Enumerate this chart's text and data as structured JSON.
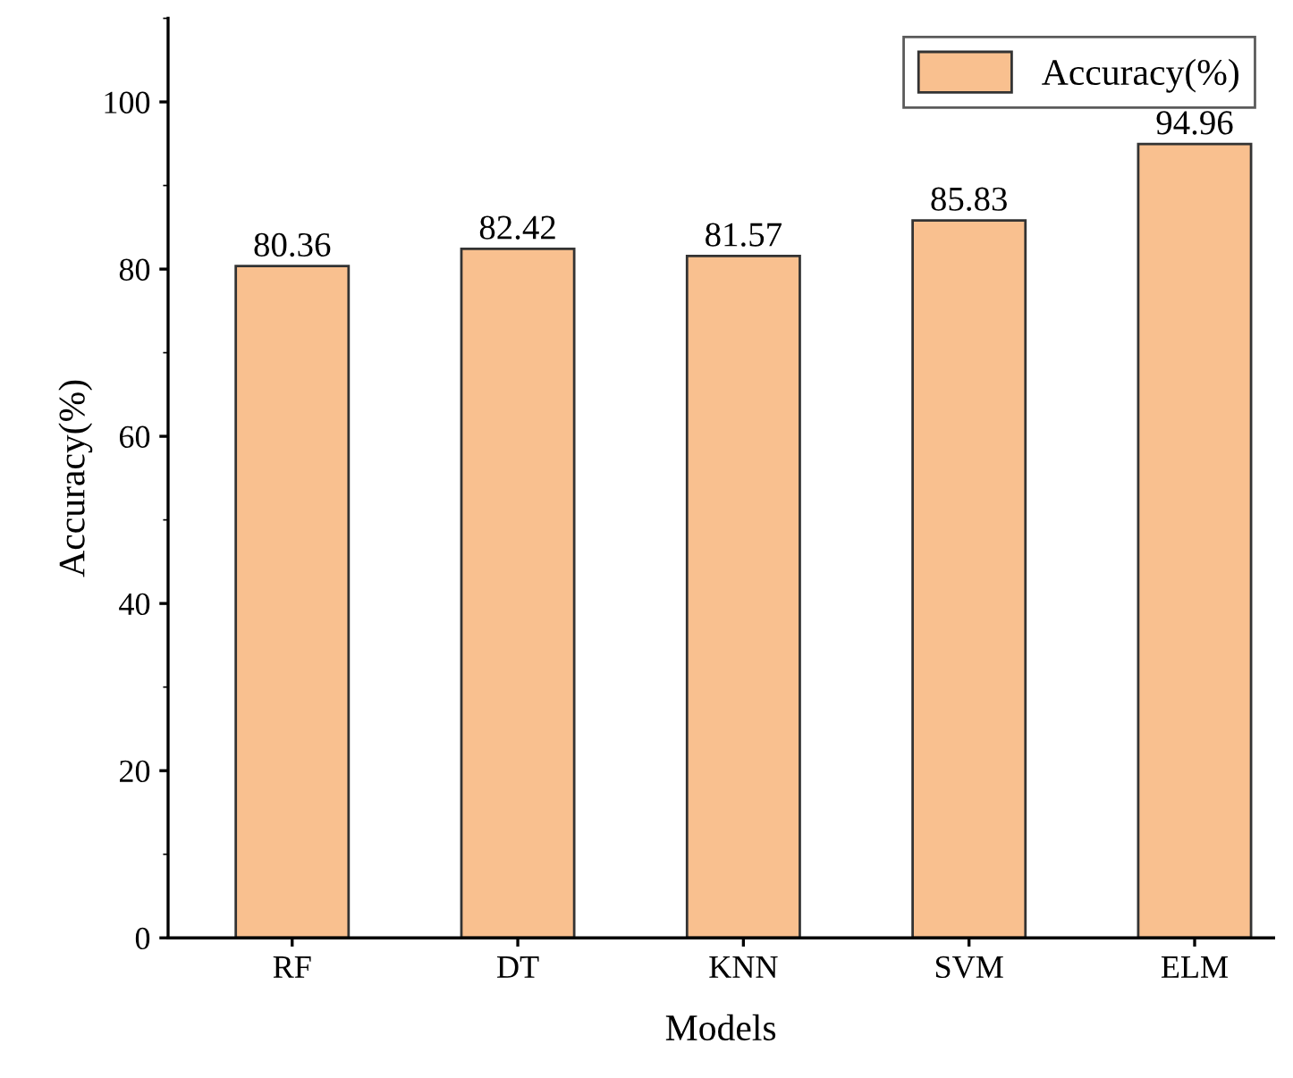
{
  "chart_data": {
    "type": "bar",
    "xlabel": "Models",
    "ylabel": "Accuracy(%)",
    "categories": [
      "RF",
      "DT",
      "KNN",
      "SVM",
      "ELM"
    ],
    "series": [
      {
        "name": "Accuracy(%)",
        "color": "#f9c08f",
        "values": [
          80.36,
          82.42,
          81.57,
          85.83,
          94.96
        ]
      }
    ],
    "data_labels": true,
    "ylim": [
      0,
      110
    ],
    "yticks": [
      0,
      20,
      40,
      60,
      80,
      100
    ],
    "grid": false,
    "legend": "top right"
  }
}
